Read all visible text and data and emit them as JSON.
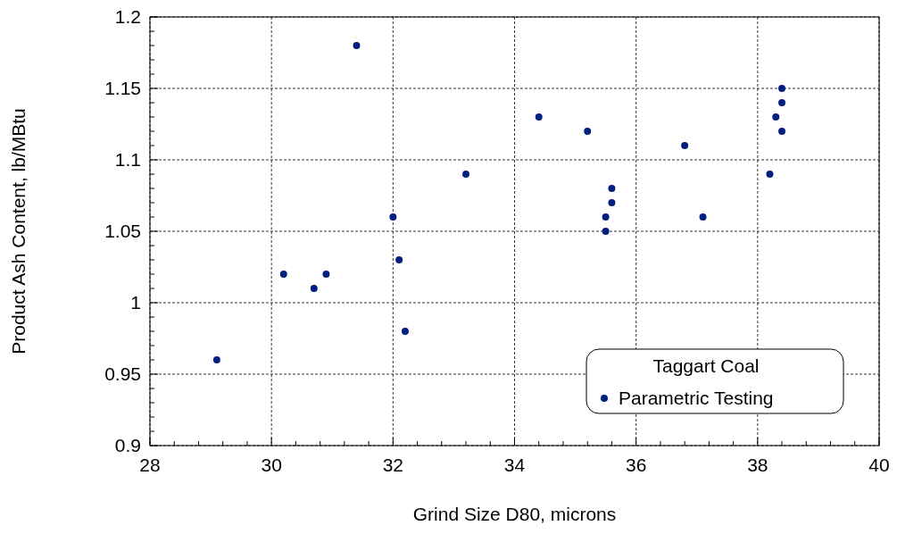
{
  "chart_data": {
    "type": "scatter",
    "xlabel": "Grind Size D80, microns",
    "ylabel": "Product Ash Content, lb/MBtu",
    "legend_title": "Taggart Coal",
    "xlim": [
      28,
      40
    ],
    "xticks": [
      28,
      30,
      32,
      34,
      36,
      38,
      40
    ],
    "ylim": [
      0.9,
      1.2
    ],
    "yticks": [
      0.9,
      0.95,
      1,
      1.05,
      1.1,
      1.15,
      1.2
    ],
    "grid": true,
    "legend": "bottom right",
    "marker": "circle",
    "series": [
      {
        "name": "Parametric Testing",
        "color": "#00207f",
        "x": [
          29.1,
          30.2,
          30.7,
          30.9,
          31.4,
          32.0,
          32.1,
          32.2,
          33.2,
          34.4,
          35.2,
          35.5,
          35.5,
          35.6,
          35.6,
          36.8,
          37.1,
          38.2,
          38.3,
          38.4,
          38.4,
          38.4
        ],
        "values": [
          0.96,
          1.02,
          1.01,
          1.02,
          1.18,
          1.06,
          1.03,
          0.98,
          1.09,
          1.13,
          1.12,
          1.06,
          1.05,
          1.08,
          1.07,
          1.11,
          1.06,
          1.09,
          1.13,
          1.15,
          1.14,
          1.12
        ]
      }
    ]
  }
}
